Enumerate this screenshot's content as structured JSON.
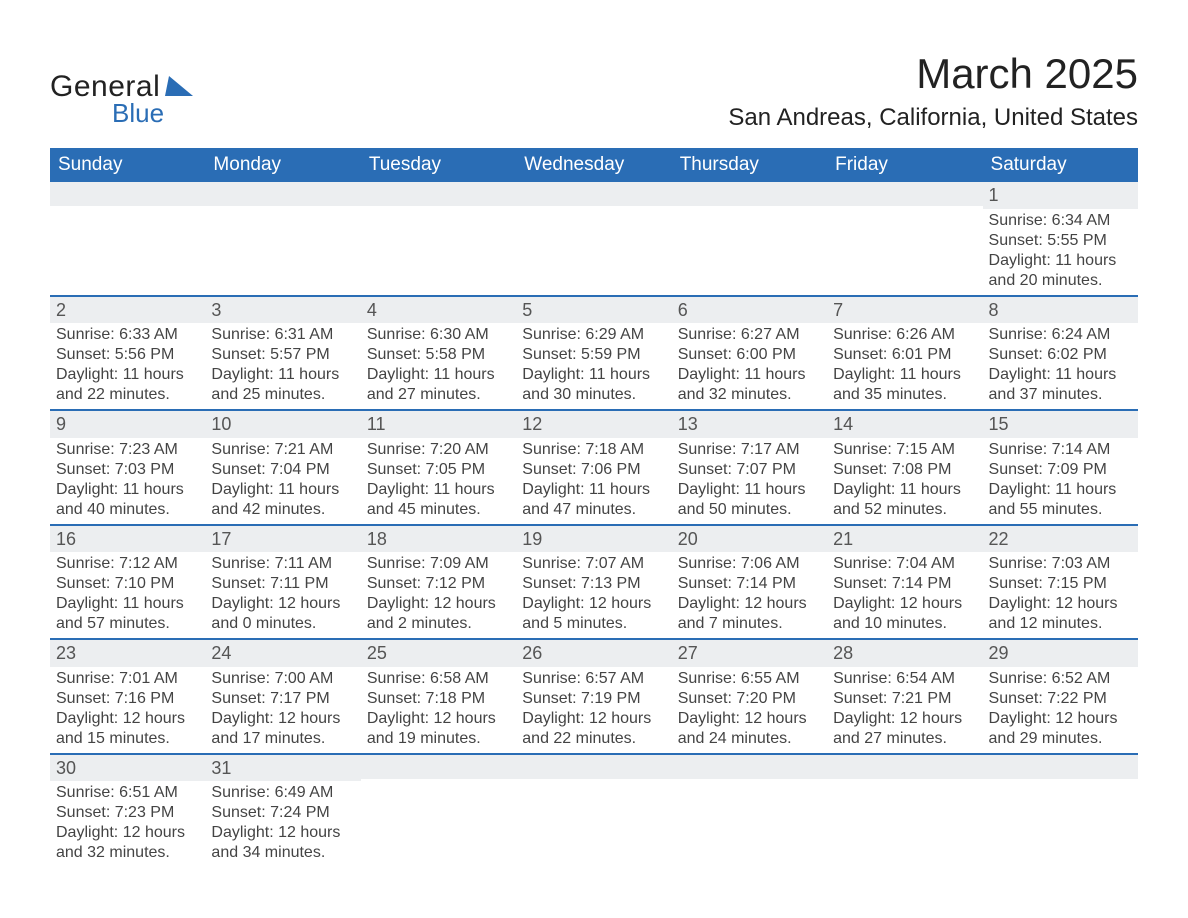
{
  "logo": {
    "word1": "General",
    "word2": "Blue",
    "shape_color": "#2a6db5"
  },
  "title": "March 2025",
  "location": "San Andreas, California, United States",
  "colors": {
    "header_bg": "#2a6db5",
    "header_text": "#ffffff",
    "daynum_bg": "#eceef0",
    "daynum_text": "#555555",
    "cell_text": "#444444",
    "row_border": "#2a6db5",
    "page_bg": "#ffffff"
  },
  "typography": {
    "title_fontsize": 42,
    "location_fontsize": 24,
    "weekday_fontsize": 19,
    "daynum_fontsize": 18,
    "cell_fontsize": 16
  },
  "weekdays": [
    "Sunday",
    "Monday",
    "Tuesday",
    "Wednesday",
    "Thursday",
    "Friday",
    "Saturday"
  ],
  "weeks": [
    [
      {
        "day": "",
        "sunrise": "",
        "sunset": "",
        "daylight": ""
      },
      {
        "day": "",
        "sunrise": "",
        "sunset": "",
        "daylight": ""
      },
      {
        "day": "",
        "sunrise": "",
        "sunset": "",
        "daylight": ""
      },
      {
        "day": "",
        "sunrise": "",
        "sunset": "",
        "daylight": ""
      },
      {
        "day": "",
        "sunrise": "",
        "sunset": "",
        "daylight": ""
      },
      {
        "day": "",
        "sunrise": "",
        "sunset": "",
        "daylight": ""
      },
      {
        "day": "1",
        "sunrise": "Sunrise: 6:34 AM",
        "sunset": "Sunset: 5:55 PM",
        "daylight": "Daylight: 11 hours and 20 minutes."
      }
    ],
    [
      {
        "day": "2",
        "sunrise": "Sunrise: 6:33 AM",
        "sunset": "Sunset: 5:56 PM",
        "daylight": "Daylight: 11 hours and 22 minutes."
      },
      {
        "day": "3",
        "sunrise": "Sunrise: 6:31 AM",
        "sunset": "Sunset: 5:57 PM",
        "daylight": "Daylight: 11 hours and 25 minutes."
      },
      {
        "day": "4",
        "sunrise": "Sunrise: 6:30 AM",
        "sunset": "Sunset: 5:58 PM",
        "daylight": "Daylight: 11 hours and 27 minutes."
      },
      {
        "day": "5",
        "sunrise": "Sunrise: 6:29 AM",
        "sunset": "Sunset: 5:59 PM",
        "daylight": "Daylight: 11 hours and 30 minutes."
      },
      {
        "day": "6",
        "sunrise": "Sunrise: 6:27 AM",
        "sunset": "Sunset: 6:00 PM",
        "daylight": "Daylight: 11 hours and 32 minutes."
      },
      {
        "day": "7",
        "sunrise": "Sunrise: 6:26 AM",
        "sunset": "Sunset: 6:01 PM",
        "daylight": "Daylight: 11 hours and 35 minutes."
      },
      {
        "day": "8",
        "sunrise": "Sunrise: 6:24 AM",
        "sunset": "Sunset: 6:02 PM",
        "daylight": "Daylight: 11 hours and 37 minutes."
      }
    ],
    [
      {
        "day": "9",
        "sunrise": "Sunrise: 7:23 AM",
        "sunset": "Sunset: 7:03 PM",
        "daylight": "Daylight: 11 hours and 40 minutes."
      },
      {
        "day": "10",
        "sunrise": "Sunrise: 7:21 AM",
        "sunset": "Sunset: 7:04 PM",
        "daylight": "Daylight: 11 hours and 42 minutes."
      },
      {
        "day": "11",
        "sunrise": "Sunrise: 7:20 AM",
        "sunset": "Sunset: 7:05 PM",
        "daylight": "Daylight: 11 hours and 45 minutes."
      },
      {
        "day": "12",
        "sunrise": "Sunrise: 7:18 AM",
        "sunset": "Sunset: 7:06 PM",
        "daylight": "Daylight: 11 hours and 47 minutes."
      },
      {
        "day": "13",
        "sunrise": "Sunrise: 7:17 AM",
        "sunset": "Sunset: 7:07 PM",
        "daylight": "Daylight: 11 hours and 50 minutes."
      },
      {
        "day": "14",
        "sunrise": "Sunrise: 7:15 AM",
        "sunset": "Sunset: 7:08 PM",
        "daylight": "Daylight: 11 hours and 52 minutes."
      },
      {
        "day": "15",
        "sunrise": "Sunrise: 7:14 AM",
        "sunset": "Sunset: 7:09 PM",
        "daylight": "Daylight: 11 hours and 55 minutes."
      }
    ],
    [
      {
        "day": "16",
        "sunrise": "Sunrise: 7:12 AM",
        "sunset": "Sunset: 7:10 PM",
        "daylight": "Daylight: 11 hours and 57 minutes."
      },
      {
        "day": "17",
        "sunrise": "Sunrise: 7:11 AM",
        "sunset": "Sunset: 7:11 PM",
        "daylight": "Daylight: 12 hours and 0 minutes."
      },
      {
        "day": "18",
        "sunrise": "Sunrise: 7:09 AM",
        "sunset": "Sunset: 7:12 PM",
        "daylight": "Daylight: 12 hours and 2 minutes."
      },
      {
        "day": "19",
        "sunrise": "Sunrise: 7:07 AM",
        "sunset": "Sunset: 7:13 PM",
        "daylight": "Daylight: 12 hours and 5 minutes."
      },
      {
        "day": "20",
        "sunrise": "Sunrise: 7:06 AM",
        "sunset": "Sunset: 7:14 PM",
        "daylight": "Daylight: 12 hours and 7 minutes."
      },
      {
        "day": "21",
        "sunrise": "Sunrise: 7:04 AM",
        "sunset": "Sunset: 7:14 PM",
        "daylight": "Daylight: 12 hours and 10 minutes."
      },
      {
        "day": "22",
        "sunrise": "Sunrise: 7:03 AM",
        "sunset": "Sunset: 7:15 PM",
        "daylight": "Daylight: 12 hours and 12 minutes."
      }
    ],
    [
      {
        "day": "23",
        "sunrise": "Sunrise: 7:01 AM",
        "sunset": "Sunset: 7:16 PM",
        "daylight": "Daylight: 12 hours and 15 minutes."
      },
      {
        "day": "24",
        "sunrise": "Sunrise: 7:00 AM",
        "sunset": "Sunset: 7:17 PM",
        "daylight": "Daylight: 12 hours and 17 minutes."
      },
      {
        "day": "25",
        "sunrise": "Sunrise: 6:58 AM",
        "sunset": "Sunset: 7:18 PM",
        "daylight": "Daylight: 12 hours and 19 minutes."
      },
      {
        "day": "26",
        "sunrise": "Sunrise: 6:57 AM",
        "sunset": "Sunset: 7:19 PM",
        "daylight": "Daylight: 12 hours and 22 minutes."
      },
      {
        "day": "27",
        "sunrise": "Sunrise: 6:55 AM",
        "sunset": "Sunset: 7:20 PM",
        "daylight": "Daylight: 12 hours and 24 minutes."
      },
      {
        "day": "28",
        "sunrise": "Sunrise: 6:54 AM",
        "sunset": "Sunset: 7:21 PM",
        "daylight": "Daylight: 12 hours and 27 minutes."
      },
      {
        "day": "29",
        "sunrise": "Sunrise: 6:52 AM",
        "sunset": "Sunset: 7:22 PM",
        "daylight": "Daylight: 12 hours and 29 minutes."
      }
    ],
    [
      {
        "day": "30",
        "sunrise": "Sunrise: 6:51 AM",
        "sunset": "Sunset: 7:23 PM",
        "daylight": "Daylight: 12 hours and 32 minutes."
      },
      {
        "day": "31",
        "sunrise": "Sunrise: 6:49 AM",
        "sunset": "Sunset: 7:24 PM",
        "daylight": "Daylight: 12 hours and 34 minutes."
      },
      {
        "day": "",
        "sunrise": "",
        "sunset": "",
        "daylight": ""
      },
      {
        "day": "",
        "sunrise": "",
        "sunset": "",
        "daylight": ""
      },
      {
        "day": "",
        "sunrise": "",
        "sunset": "",
        "daylight": ""
      },
      {
        "day": "",
        "sunrise": "",
        "sunset": "",
        "daylight": ""
      },
      {
        "day": "",
        "sunrise": "",
        "sunset": "",
        "daylight": ""
      }
    ]
  ]
}
